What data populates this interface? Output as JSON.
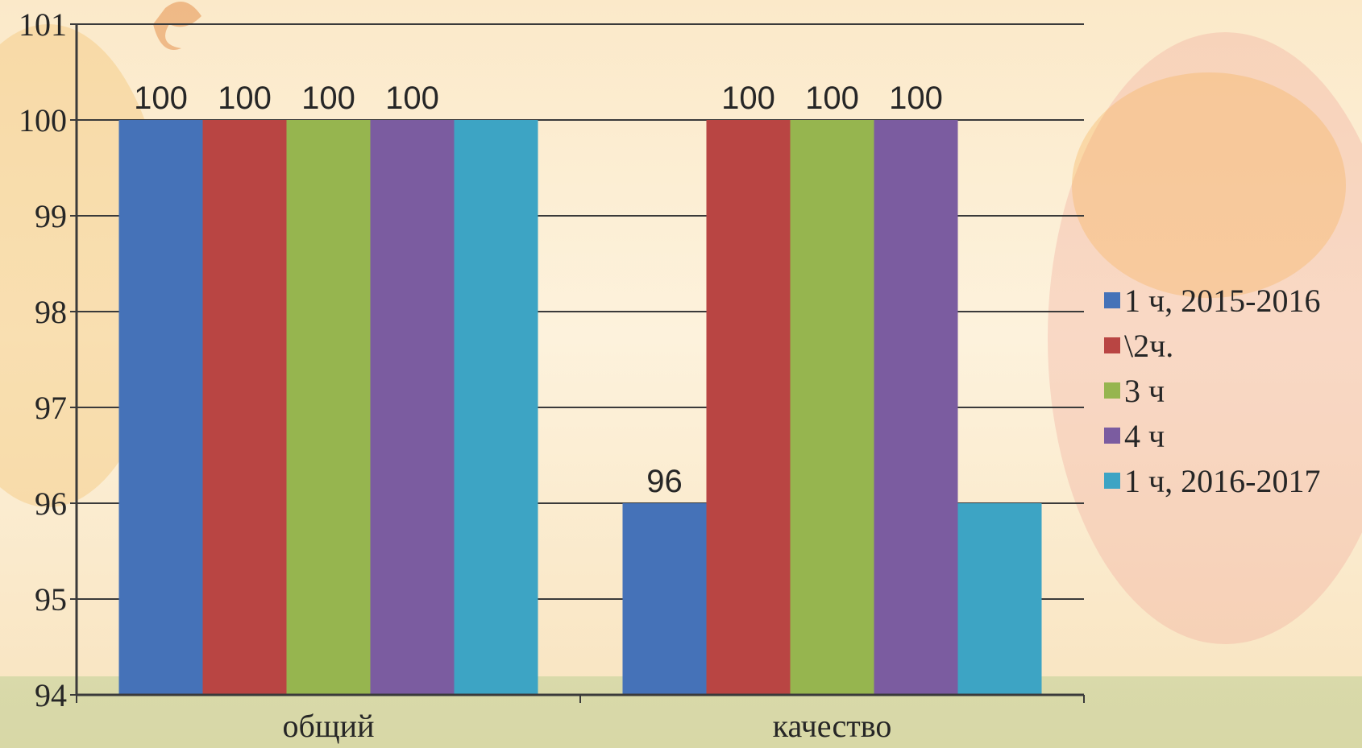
{
  "chart_data": {
    "type": "bar",
    "categories": [
      "общий",
      "качество"
    ],
    "series": [
      {
        "name": "1 ч, 2015-2016",
        "color": "#4572b8",
        "values": [
          100,
          96
        ]
      },
      {
        "name": "\\2ч.",
        "color": "#b94543",
        "values": [
          100,
          100
        ]
      },
      {
        "name": "3 ч",
        "color": "#96b54f",
        "values": [
          100,
          100
        ]
      },
      {
        "name": "4 ч",
        "color": "#7b5ca0",
        "values": [
          100,
          100
        ]
      },
      {
        "name": "1 ч, 2016-2017",
        "color": "#3da4c4",
        "values": [
          100,
          96
        ]
      }
    ],
    "data_labels": [
      [
        "100",
        "100",
        "100",
        "100",
        ""
      ],
      [
        "96",
        "100",
        "100",
        "100",
        ""
      ]
    ],
    "yticks": [
      "94",
      "95",
      "96",
      "97",
      "98",
      "99",
      "100",
      "101"
    ],
    "ylim": [
      94,
      101
    ],
    "grid": true,
    "legend_position": "right",
    "title": "",
    "xlabel": "",
    "ylabel": ""
  }
}
